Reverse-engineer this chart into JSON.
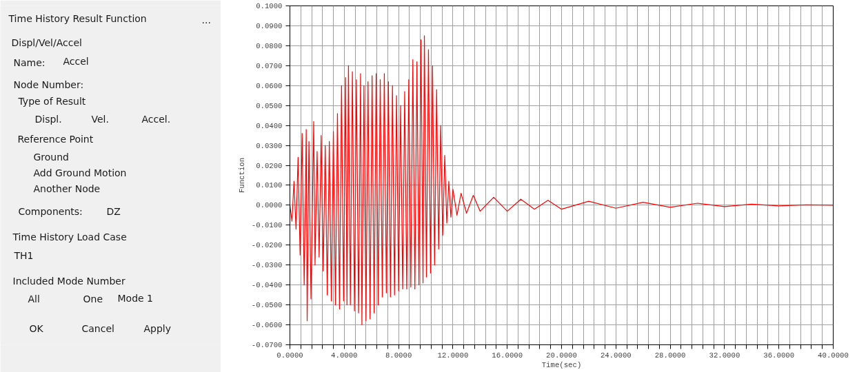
{
  "chart_data": [
    {
      "type": "other",
      "annotations": [
        "Time History Result Function",
        "...",
        "Displ/Vel/Accel",
        "Name:",
        "Accel",
        "Node Number:",
        "Type of Result",
        "Displ.",
        "Vel.",
        "Accel.",
        "Reference Point",
        "Ground",
        "Add Ground Motion",
        "Another Node",
        "Components:",
        "DZ",
        "Time History Load Case",
        "TH1",
        "Included Mode Number",
        "All",
        "One",
        "Mode 1",
        "OK",
        "Cancel",
        "Apply"
      ]
    },
    {
      "type": "line",
      "xlabel": "Time(sec)",
      "ylabel": "Function",
      "grid": true,
      "line_style": "solid",
      "marker": "none",
      "xlim": [
        0,
        40
      ],
      "ylim": [
        -0.07,
        0.1
      ],
      "xticks": [
        {
          "value": 0,
          "label": "0.0000"
        },
        {
          "value": 0.8,
          "label": null
        },
        {
          "value": 1.6,
          "label": null
        },
        {
          "value": 2.4,
          "label": null
        },
        {
          "value": 3.2,
          "label": null
        },
        {
          "value": 4,
          "label": "4.0000"
        },
        {
          "value": 4.8,
          "label": null
        },
        {
          "value": 5.6,
          "label": null
        },
        {
          "value": 6.4,
          "label": null
        },
        {
          "value": 7.2,
          "label": null
        },
        {
          "value": 8,
          "label": "8.0000"
        },
        {
          "value": 8.8,
          "label": null
        },
        {
          "value": 9.6,
          "label": null
        },
        {
          "value": 10.4,
          "label": null
        },
        {
          "value": 11.2,
          "label": null
        },
        {
          "value": 12,
          "label": "12.0000"
        },
        {
          "value": 12.8,
          "label": null
        },
        {
          "value": 13.6,
          "label": null
        },
        {
          "value": 14.4,
          "label": null
        },
        {
          "value": 15.2,
          "label": null
        },
        {
          "value": 16,
          "label": "16.0000"
        },
        {
          "value": 16.8,
          "label": null
        },
        {
          "value": 17.6,
          "label": null
        },
        {
          "value": 18.4,
          "label": null
        },
        {
          "value": 19.2,
          "label": null
        },
        {
          "value": 20,
          "label": "20.0000"
        },
        {
          "value": 20.8,
          "label": null
        },
        {
          "value": 21.6,
          "label": null
        },
        {
          "value": 22.4,
          "label": null
        },
        {
          "value": 23.2,
          "label": null
        },
        {
          "value": 24,
          "label": "24.0000"
        },
        {
          "value": 24.8,
          "label": null
        },
        {
          "value": 25.6,
          "label": null
        },
        {
          "value": 26.4,
          "label": null
        },
        {
          "value": 27.2,
          "label": null
        },
        {
          "value": 28,
          "label": "28.0000"
        },
        {
          "value": 28.8,
          "label": null
        },
        {
          "value": 29.6,
          "label": null
        },
        {
          "value": 30.4,
          "label": null
        },
        {
          "value": 31.2,
          "label": null
        },
        {
          "value": 32,
          "label": "32.0000"
        },
        {
          "value": 32.8,
          "label": null
        },
        {
          "value": 33.6,
          "label": null
        },
        {
          "value": 34.4,
          "label": null
        },
        {
          "value": 35.2,
          "label": null
        },
        {
          "value": 36,
          "label": "36.0000"
        },
        {
          "value": 36.8,
          "label": null
        },
        {
          "value": 37.6,
          "label": null
        },
        {
          "value": 38.4,
          "label": null
        },
        {
          "value": 39.2,
          "label": null
        },
        {
          "value": 40,
          "label": "40.0000"
        }
      ],
      "yticks": [
        {
          "value": -0.07,
          "label": "-0.0700"
        },
        {
          "value": -0.06,
          "label": "-0.0600"
        },
        {
          "value": -0.05,
          "label": "-0.0500"
        },
        {
          "value": -0.04,
          "label": "-0.0400"
        },
        {
          "value": -0.03,
          "label": "-0.0300"
        },
        {
          "value": -0.02,
          "label": "-0.0200"
        },
        {
          "value": -0.01,
          "label": "-0.0100"
        },
        {
          "value": 0,
          "label": "0.0000"
        },
        {
          "value": 0.01,
          "label": "0.0100"
        },
        {
          "value": 0.02,
          "label": "0.0200"
        },
        {
          "value": 0.03,
          "label": "0.0300"
        },
        {
          "value": 0.04,
          "label": "0.0400"
        },
        {
          "value": 0.05,
          "label": "0.0500"
        },
        {
          "value": 0.06,
          "label": "0.0600"
        },
        {
          "value": 0.07,
          "label": "0.0700"
        },
        {
          "value": 0.08,
          "label": "0.0800"
        },
        {
          "value": 0.09,
          "label": "0.0900"
        },
        {
          "value": 0.1,
          "label": "0.1000"
        }
      ],
      "series": [
        {
          "color": "#ff0000",
          "x": [
            0,
            0.15,
            0.3,
            0.45,
            0.6,
            0.75,
            0.9,
            1.05,
            1.2,
            1.27,
            1.4,
            1.55,
            1.75,
            1.85,
            2.0,
            2.15,
            2.3,
            2.45,
            2.6,
            2.75,
            2.9,
            3.05,
            3.2,
            3.35,
            3.5,
            3.65,
            3.8,
            3.95,
            4.1,
            4.2,
            4.31,
            4.45,
            4.6,
            4.75,
            4.9,
            5.05,
            5.2,
            5.3,
            5.45,
            5.6,
            5.75,
            5.9,
            6.05,
            6.2,
            6.35,
            6.5,
            6.65,
            6.8,
            6.95,
            7.1,
            7.25,
            7.4,
            7.55,
            7.7,
            7.85,
            8.0,
            8.15,
            8.3,
            8.45,
            8.6,
            8.75,
            8.9,
            9.05,
            9.2,
            9.35,
            9.5,
            9.65,
            9.8,
            9.9,
            10.05,
            10.2,
            10.35,
            10.5,
            10.65,
            10.8,
            10.95,
            11.1,
            11.25,
            11.4,
            11.55,
            11.7,
            11.85,
            12.0,
            12.3,
            12.6,
            13.0,
            13.5,
            14.0,
            15,
            16,
            17,
            18,
            19,
            20,
            22,
            24,
            26,
            28,
            30,
            32,
            34,
            36,
            38,
            40
          ],
          "values": [
            0,
            -0.008,
            0.012,
            -0.012,
            0.024,
            -0.025,
            0.036,
            -0.04,
            0.038,
            -0.058,
            0.032,
            -0.047,
            0.042,
            -0.03,
            0.027,
            -0.026,
            0.035,
            -0.033,
            0.03,
            -0.045,
            0.032,
            -0.048,
            0.037,
            -0.05,
            0.046,
            -0.052,
            0.06,
            -0.048,
            0.064,
            -0.05,
            0.07,
            -0.05,
            0.067,
            -0.053,
            0.063,
            -0.054,
            0.066,
            -0.06,
            0.06,
            -0.058,
            0.062,
            -0.057,
            0.065,
            -0.054,
            0.066,
            -0.05,
            0.063,
            -0.046,
            0.066,
            -0.044,
            0.062,
            -0.046,
            0.06,
            -0.045,
            0.055,
            -0.043,
            0.05,
            -0.042,
            0.057,
            -0.042,
            0.063,
            -0.041,
            0.073,
            -0.042,
            0.072,
            -0.04,
            0.083,
            -0.039,
            0.085,
            -0.036,
            0.078,
            -0.034,
            0.07,
            -0.03,
            0.058,
            -0.022,
            0.04,
            -0.015,
            0.025,
            -0.009,
            0.012,
            -0.006,
            0.008,
            -0.005,
            0.006,
            -0.004,
            0.005,
            -0.003,
            0.004,
            -0.003,
            0.003,
            -0.002,
            0.0025,
            -0.002,
            0.002,
            -0.0015,
            0.0015,
            -0.001,
            0.001,
            -0.0007,
            0.0005,
            -0.0003,
            0.0002,
            0
          ]
        }
      ]
    }
  ]
}
